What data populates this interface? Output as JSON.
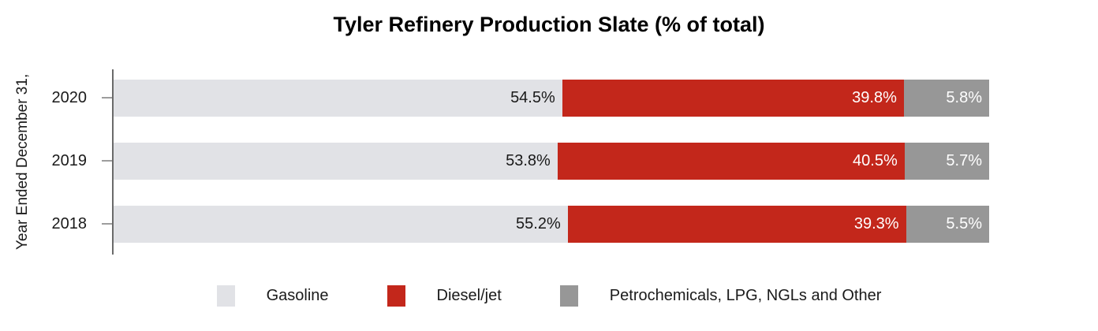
{
  "title": "Tyler Refinery Production Slate (% of total)",
  "colors": {
    "gasoline": "#e1e2e6",
    "diesel_jet": "#c3271b",
    "petrochemicals_other": "#979797",
    "axis_line": "#6a6a6a",
    "tick_mark": "#9d9d9d",
    "dark_text": "#1a1a1a",
    "light_text": "#ffffff",
    "title_text": "#000000"
  },
  "chart_data": {
    "type": "bar",
    "orientation": "horizontal",
    "stacked": true,
    "title": "Tyler Refinery Production Slate (% of total)",
    "ylabel": "Year Ended December 31,",
    "xlabel": "",
    "categories": [
      "2020",
      "2019",
      "2018"
    ],
    "series": [
      {
        "name": "Gasoline",
        "color": "#e1e2e6",
        "label_color": "#1a1a1a",
        "values": [
          54.5,
          53.8,
          55.2
        ]
      },
      {
        "name": "Diesel/jet",
        "color": "#c3271b",
        "label_color": "#ffffff",
        "values": [
          39.8,
          40.5,
          39.3
        ]
      },
      {
        "name": "Petrochemicals, LPG, NGLs and Other",
        "color": "#979797",
        "label_color": "#ffffff",
        "values": [
          5.8,
          5.7,
          5.5
        ]
      }
    ],
    "value_suffix": "%",
    "value_decimals": 1,
    "xlim": [
      0,
      100
    ],
    "grid": false,
    "legend_position": "bottom"
  }
}
